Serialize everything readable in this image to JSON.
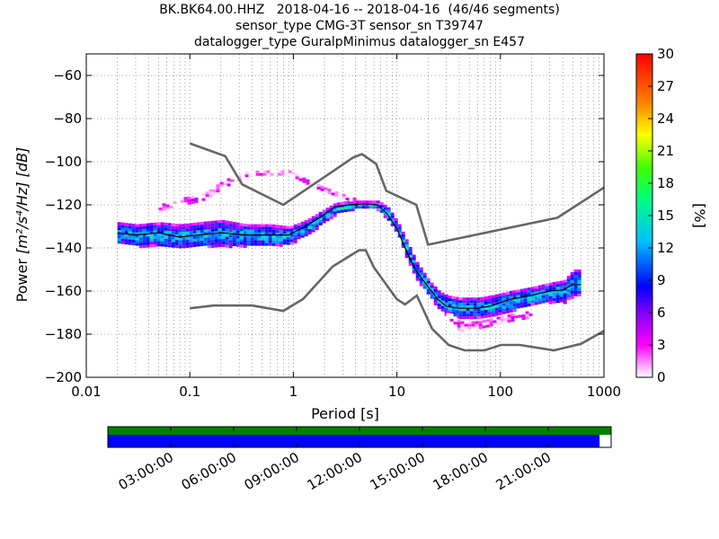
{
  "header": {
    "title_lines": [
      "BK.BK64.00.HHZ   2018-04-16 -- 2018-04-16  (46/46 segments)",
      "sensor_type CMG-3T sensor_sn T39747",
      "datalogger_type GuralpMinimus datalogger_sn E457"
    ]
  },
  "chart_data": {
    "type": "heatmap",
    "x_axis": {
      "label": "Period [s]",
      "scale": "log",
      "range": [
        0.01,
        1000
      ],
      "ticks": [
        0.01,
        0.1,
        1,
        10,
        100,
        1000
      ],
      "tick_labels": [
        "0.01",
        "0.1",
        "1",
        "10",
        "100",
        "1000"
      ]
    },
    "y_axis": {
      "label_text": "Power",
      "label_units": "[m²/s⁴/Hz] [dB]",
      "range": [
        -200,
        -50
      ],
      "ticks": [
        -60,
        -80,
        -100,
        -120,
        -140,
        -160,
        -180,
        -200
      ],
      "tick_labels": [
        "−60",
        "−80",
        "−100",
        "−120",
        "−140",
        "−160",
        "−180",
        "−200"
      ]
    },
    "grid": "dotted",
    "colorbar": {
      "label": "[%]",
      "range": [
        0,
        30
      ],
      "ticks": [
        0,
        3,
        6,
        9,
        12,
        15,
        18,
        21,
        24,
        27,
        30
      ],
      "tick_labels": [
        "0",
        "3",
        "6",
        "9",
        "12",
        "15",
        "18",
        "21",
        "24",
        "27",
        "30"
      ]
    },
    "noise_models": {
      "new_high_noise_model": {
        "period": [
          0.1,
          0.22,
          0.32,
          0.8,
          3.8,
          4.6,
          6.3,
          7.9,
          15.4,
          20,
          354.8,
          1000
        ],
        "power": [
          -91.5,
          -97.4,
          -110.5,
          -120,
          -98,
          -96.5,
          -101,
          -113.5,
          -120,
          -138.5,
          -126,
          -112
        ]
      },
      "new_low_noise_model": {
        "period": [
          0.1,
          0.17,
          0.4,
          0.8,
          1.24,
          2.4,
          4.3,
          5,
          6,
          10,
          12,
          15.6,
          21.9,
          31.6,
          45,
          70,
          101,
          154,
          328,
          600,
          1000
        ],
        "power": [
          -168,
          -166.7,
          -166.7,
          -169.2,
          -163.7,
          -148.6,
          -141.1,
          -141.1,
          -149,
          -163.8,
          -166.2,
          -162.1,
          -177.5,
          -185,
          -187.5,
          -187.5,
          -185,
          -185,
          -187.5,
          -184.5,
          -178.5
        ]
      }
    },
    "mean_curve": {
      "period": [
        0.02,
        0.03,
        0.05,
        0.08,
        0.12,
        0.2,
        0.35,
        0.6,
        0.9,
        1.3,
        1.8,
        2.5,
        3.5,
        5,
        6.5,
        8,
        10,
        12,
        15,
        20,
        25,
        30,
        40,
        60,
        80,
        120,
        200,
        300,
        400,
        500,
        600
      ],
      "power": [
        -133,
        -134,
        -133,
        -135,
        -134,
        -133,
        -134,
        -134,
        -134,
        -130,
        -126,
        -121,
        -120,
        -119.5,
        -120,
        -124,
        -131,
        -140,
        -150,
        -158,
        -164,
        -167,
        -168,
        -168,
        -167,
        -164,
        -162,
        -160,
        -159.5,
        -157,
        -157
      ]
    },
    "psd_bands": [
      {
        "name": "core",
        "period": [
          0.02,
          0.03,
          0.05,
          0.08,
          0.12,
          0.2,
          0.35,
          0.6,
          0.9,
          1.3,
          1.8,
          2.5,
          3.5,
          5,
          6.5,
          8,
          10,
          12,
          15,
          20,
          25,
          30,
          40,
          60,
          80,
          120,
          200,
          300,
          400,
          500,
          600
        ],
        "low": [
          -138,
          -139,
          -139,
          -140,
          -139,
          -139,
          -139,
          -139,
          -138,
          -134,
          -129,
          -124,
          -122,
          -121,
          -122,
          -127,
          -134,
          -144,
          -154,
          -162,
          -168,
          -171,
          -172,
          -172,
          -171,
          -169,
          -166,
          -165,
          -165,
          -162,
          -162
        ],
        "high": [
          -128,
          -129,
          -128,
          -129,
          -128,
          -127,
          -129,
          -129,
          -130,
          -127,
          -123,
          -119,
          -118,
          -118,
          -118,
          -121,
          -128,
          -136,
          -146,
          -155,
          -160,
          -162,
          -163,
          -163,
          -162,
          -160,
          -158,
          -156,
          -155,
          -150,
          -150
        ],
        "level": 13
      },
      {
        "name": "upper-outlier",
        "period": [
          0.05,
          0.07,
          0.1,
          0.14,
          0.2,
          0.3,
          0.45,
          0.7,
          0.9,
          1.3,
          2,
          3,
          4
        ],
        "low": [
          -124,
          -120,
          -119,
          -117,
          -112,
          -108,
          -106,
          -106,
          -106,
          -110,
          -114,
          -117,
          -119
        ],
        "high": [
          -120,
          -117,
          -116,
          -114,
          -109,
          -105,
          -104,
          -104,
          -104,
          -108,
          -112,
          -115,
          -117
        ],
        "level": 2
      },
      {
        "name": "lower-outlier",
        "period": [
          30,
          40,
          60,
          90,
          140,
          200
        ],
        "low": [
          -172,
          -178,
          -177,
          -175,
          -173,
          -172
        ],
        "high": [
          -169,
          -174,
          -174,
          -172,
          -170,
          -169
        ],
        "level": 2
      }
    ]
  },
  "timeline": {
    "tick_labels": [
      "03:00:00",
      "06:00:00",
      "09:00:00",
      "12:00:00",
      "15:00:00",
      "18:00:00",
      "21:00:00"
    ],
    "tick_hours": [
      3,
      6,
      9,
      12,
      15,
      18,
      21
    ],
    "range_hours": [
      0,
      24
    ],
    "data_available_fraction": 1.0,
    "psd_coverage_fraction": 0.977,
    "colors": {
      "data": "#008000",
      "psd": "#0000ff"
    }
  }
}
